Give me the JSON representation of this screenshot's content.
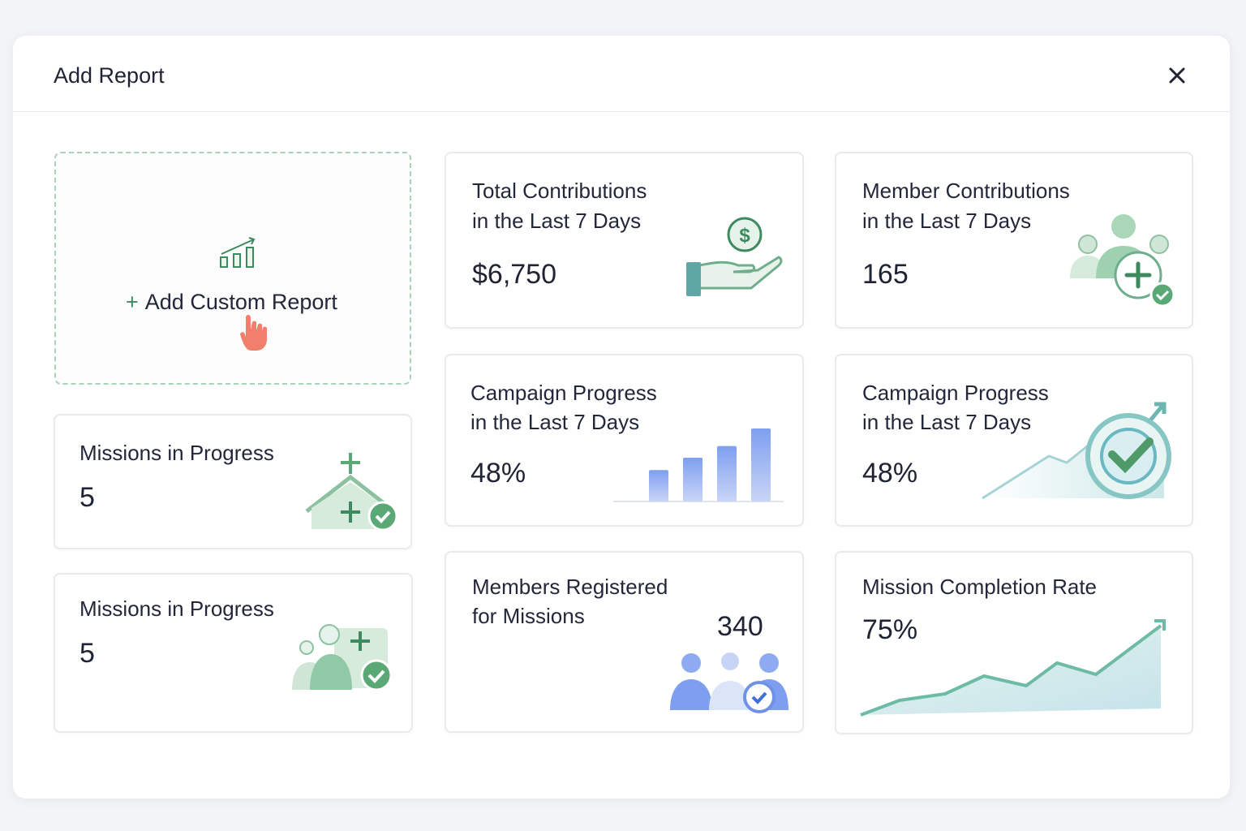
{
  "dialog": {
    "title": "Add Report",
    "close_icon": "close-icon"
  },
  "custom_report": {
    "plus": "+",
    "label": "Add Custom Report"
  },
  "cards": [
    {
      "title1": "Total Contributions",
      "title2": "in the Last 7 Days",
      "value": "$6,750"
    },
    {
      "title1": "Member Contributions",
      "title2": "in the Last 7 Days",
      "value": "165"
    },
    {
      "title1": "Missions in Progress",
      "value": "5"
    },
    {
      "title1": "Campaign Progress",
      "title2": "in the Last 7 Days",
      "value": "48%",
      "bars": [
        0.43,
        0.6,
        0.76,
        1.0
      ]
    },
    {
      "title1": "Campaign Progress",
      "title2": "in the Last 7 Days",
      "value": "48%"
    },
    {
      "title1": "Missions in Progress",
      "value": "5"
    },
    {
      "title1": "Members Registered",
      "title2": "for Missions",
      "value": "340"
    },
    {
      "title1": "Mission Completion Rate",
      "value": "75%"
    }
  ],
  "colors": {
    "accent": "#3d8a5f",
    "bar": "#7e9ff0",
    "cursor": "#f07f6c"
  }
}
